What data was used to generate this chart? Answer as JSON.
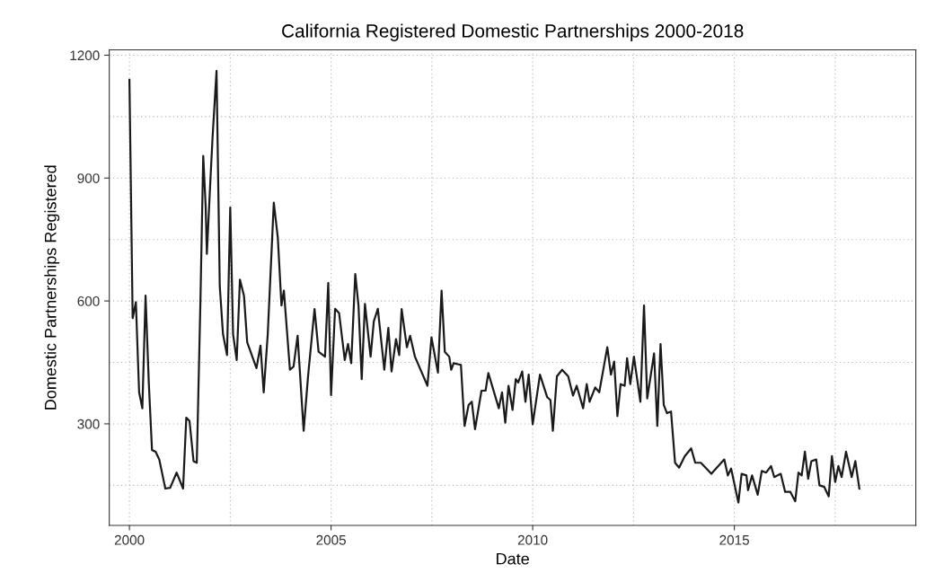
{
  "chart_data": {
    "type": "line",
    "title": "California Registered Domestic Partnerships 2000-2018",
    "xlabel": "Date",
    "ylabel": "Domestic Partnerships Registered",
    "xlim": [
      1999.5,
      2019.5
    ],
    "xticks": [
      2000,
      2005,
      2010,
      2015
    ],
    "ylim": [
      52,
      1213
    ],
    "yticks": [
      300,
      600,
      900,
      1200
    ],
    "grid": true,
    "line_style": "solid",
    "marker": "none",
    "series": [
      {
        "color": "#1a1a1a",
        "x": [
          2000.0,
          2000.08,
          2000.16,
          2000.24,
          2000.32,
          2000.4,
          2000.48,
          2000.56,
          2000.65,
          2000.74,
          2000.89,
          2001.01,
          2001.17,
          2001.33,
          2001.41,
          2001.49,
          2001.59,
          2001.67,
          2001.76,
          2001.83,
          2001.89,
          2001.92,
          2002.0,
          2002.06,
          2002.16,
          2002.24,
          2002.32,
          2002.42,
          2002.5,
          2002.57,
          2002.66,
          2002.74,
          2002.84,
          2002.92,
          2003.15,
          2003.25,
          2003.33,
          2003.43,
          2003.58,
          2003.68,
          2003.77,
          2003.83,
          2003.98,
          2004.07,
          2004.17,
          2004.32,
          2004.43,
          2004.59,
          2004.69,
          2004.85,
          2004.93,
          2005.0,
          2005.1,
          2005.2,
          2005.34,
          2005.42,
          2005.5,
          2005.6,
          2005.68,
          2005.76,
          2005.84,
          2005.98,
          2006.06,
          2006.16,
          2006.32,
          2006.42,
          2006.5,
          2006.61,
          2006.69,
          2006.75,
          2006.88,
          2006.96,
          2007.08,
          2007.39,
          2007.49,
          2007.65,
          2007.74,
          2007.82,
          2007.93,
          2007.98,
          2008.04,
          2008.22,
          2008.31,
          2008.41,
          2008.49,
          2008.57,
          2008.73,
          2008.83,
          2008.9,
          2009.16,
          2009.24,
          2009.32,
          2009.4,
          2009.5,
          2009.58,
          2009.64,
          2009.74,
          2009.82,
          2009.9,
          2010.0,
          2010.18,
          2010.36,
          2010.44,
          2010.5,
          2010.6,
          2010.73,
          2010.88,
          2011.0,
          2011.09,
          2011.25,
          2011.34,
          2011.41,
          2011.55,
          2011.65,
          2011.85,
          2011.94,
          2012.02,
          2012.1,
          2012.18,
          2012.28,
          2012.34,
          2012.42,
          2012.51,
          2012.67,
          2012.76,
          2012.84,
          2013.01,
          2013.09,
          2013.17,
          2013.25,
          2013.33,
          2013.43,
          2013.53,
          2013.63,
          2013.77,
          2013.93,
          2014.03,
          2014.17,
          2014.43,
          2014.75,
          2014.84,
          2014.92,
          2015.1,
          2015.18,
          2015.3,
          2015.34,
          2015.44,
          2015.58,
          2015.68,
          2015.79,
          2015.91,
          2015.99,
          2016.15,
          2016.26,
          2016.39,
          2016.51,
          2016.59,
          2016.67,
          2016.75,
          2016.83,
          2016.91,
          2017.03,
          2017.11,
          2017.23,
          2017.34,
          2017.42,
          2017.5,
          2017.58,
          2017.66,
          2017.77,
          2017.91,
          2018.0,
          2018.1
        ],
        "values": [
          1140,
          558,
          597,
          377,
          338,
          613,
          401,
          236,
          232,
          213,
          142,
          144,
          181,
          142,
          315,
          307,
          209,
          205,
          597,
          954,
          832,
          715,
          879,
          997,
          1162,
          636,
          519,
          468,
          828,
          519,
          456,
          652,
          613,
          499,
          436,
          491,
          377,
          519,
          840,
          754,
          589,
          625,
          432,
          440,
          515,
          283,
          417,
          580,
          476,
          464,
          644,
          370,
          581,
          570,
          456,
          495,
          448,
          666,
          589,
          409,
          593,
          464,
          550,
          581,
          432,
          534,
          428,
          507,
          468,
          580,
          487,
          515,
          464,
          393,
          511,
          425,
          625,
          476,
          464,
          432,
          448,
          444,
          295,
          346,
          354,
          287,
          381,
          381,
          424,
          338,
          377,
          303,
          393,
          334,
          409,
          401,
          428,
          354,
          420,
          299,
          420,
          365,
          358,
          283,
          416,
          432,
          416,
          369,
          393,
          338,
          397,
          354,
          389,
          377,
          487,
          420,
          452,
          319,
          397,
          393,
          460,
          397,
          464,
          354,
          589,
          362,
          472,
          295,
          495,
          346,
          326,
          330,
          205,
          193,
          221,
          240,
          205,
          205,
          178,
          213,
          174,
          191,
          108,
          178,
          174,
          138,
          174,
          127,
          185,
          181,
          197,
          170,
          178,
          134,
          134,
          111,
          181,
          174,
          232,
          166,
          209,
          213,
          150,
          146,
          123,
          221,
          158,
          197,
          170,
          232,
          170,
          209,
          142
        ]
      }
    ]
  }
}
